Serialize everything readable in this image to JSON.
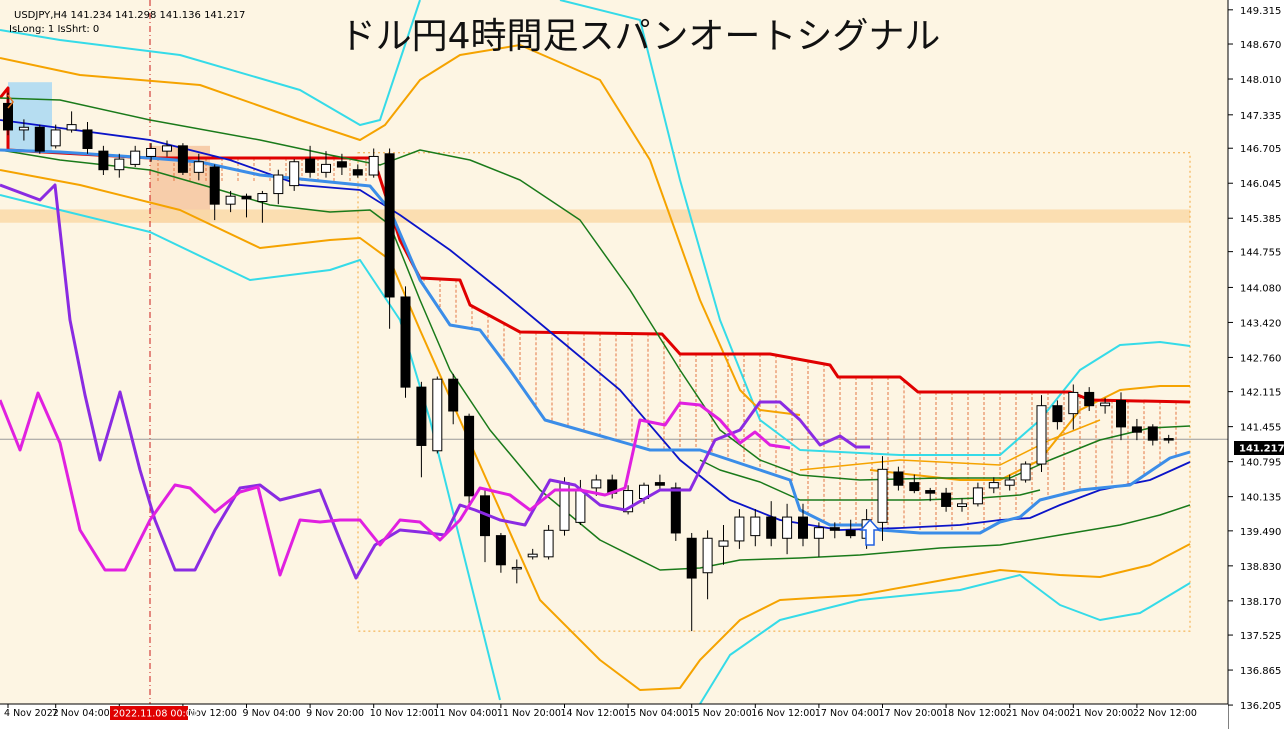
{
  "header": {
    "symbol_line": "USDJPY,H4  141.234 141.298 141.136 141.217",
    "indicator_line": "IsLong: 1 IsShrt: 0",
    "title": "ドル円4時間足スパンオートシグナル"
  },
  "price_label": "141.217",
  "crosshair_label": "2022.11.08 00:00",
  "colors": {
    "background": "#fdf5e3",
    "bull_body": "#ffffff",
    "bear_body": "#000000",
    "red_line": "#e00000",
    "green_line": "#1a7a1a",
    "blue_line": "#0b14c8",
    "light_blue_line": "#3b8de8",
    "orange_band": "#f5a300",
    "cyan_band": "#35dbe8",
    "purple_osc": "#8a2be2",
    "magenta_osc": "#e020e0",
    "price_tag": "#000000",
    "crosshair_tag": "#e00000"
  },
  "chart_data": {
    "type": "candlestick",
    "symbol": "USDJPY",
    "timeframe": "H4",
    "ylim": [
      136.225,
      149.5
    ],
    "yticks": [
      "149.315",
      "148.670",
      "148.010",
      "147.335",
      "146.705",
      "146.045",
      "145.385",
      "144.755",
      "144.080",
      "143.420",
      "142.760",
      "142.115",
      "141.455",
      "140.795",
      "140.135",
      "139.490",
      "138.830",
      "138.170",
      "137.525",
      "136.865",
      "136.205"
    ],
    "xticks": [
      {
        "i": 0,
        "label": "4 Nov 2022"
      },
      {
        "i": 3,
        "label": "7 Nov 04:00"
      },
      {
        "i": 7,
        "label": "8 Nov 00:00"
      },
      {
        "i": 11,
        "label": "8 Nov 12:00"
      },
      {
        "i": 15,
        "label": "9 Nov 04:00"
      },
      {
        "i": 19,
        "label": "9 Nov 20:00"
      },
      {
        "i": 23,
        "label": "10 Nov 12:00"
      },
      {
        "i": 27,
        "label": "11 Nov 04:00"
      },
      {
        "i": 31,
        "label": "11 Nov 20:00"
      },
      {
        "i": 35,
        "label": "14 Nov 12:00"
      },
      {
        "i": 39,
        "label": "15 Nov 04:00"
      },
      {
        "i": 43,
        "label": "15 Nov 20:00"
      },
      {
        "i": 47,
        "label": "16 Nov 12:00"
      },
      {
        "i": 51,
        "label": "17 Nov 04:00"
      },
      {
        "i": 55,
        "label": "17 Nov 20:00"
      },
      {
        "i": 59,
        "label": "18 Nov 12:00"
      },
      {
        "i": 63,
        "label": "21 Nov 04:00"
      },
      {
        "i": 67,
        "label": "21 Nov 20:00"
      },
      {
        "i": 71,
        "label": "22 Nov 12:00"
      }
    ],
    "candles": [
      [
        147.55,
        147.75,
        146.95,
        147.05
      ],
      [
        147.05,
        147.25,
        146.85,
        147.1
      ],
      [
        147.1,
        147.15,
        146.6,
        146.65
      ],
      [
        146.75,
        147.15,
        146.7,
        147.05
      ],
      [
        147.05,
        147.4,
        147.0,
        147.15
      ],
      [
        147.05,
        147.2,
        146.6,
        146.7
      ],
      [
        146.65,
        146.75,
        146.2,
        146.3
      ],
      [
        146.3,
        146.6,
        146.15,
        146.5
      ],
      [
        146.4,
        146.75,
        146.35,
        146.65
      ],
      [
        146.55,
        146.8,
        146.45,
        146.7
      ],
      [
        146.65,
        146.85,
        146.55,
        146.75
      ],
      [
        146.75,
        146.8,
        146.2,
        146.25
      ],
      [
        146.25,
        146.6,
        146.1,
        146.45
      ],
      [
        146.35,
        146.4,
        145.35,
        145.65
      ],
      [
        145.65,
        145.9,
        145.5,
        145.8
      ],
      [
        145.8,
        145.85,
        145.4,
        145.75
      ],
      [
        145.7,
        145.9,
        145.3,
        145.85
      ],
      [
        145.85,
        146.3,
        145.65,
        146.2
      ],
      [
        146.0,
        146.5,
        145.9,
        146.45
      ],
      [
        146.5,
        146.75,
        146.15,
        146.25
      ],
      [
        146.25,
        146.65,
        146.15,
        146.4
      ],
      [
        146.45,
        146.6,
        146.2,
        146.35
      ],
      [
        146.3,
        146.4,
        146.15,
        146.2
      ],
      [
        146.2,
        146.7,
        146.15,
        146.55
      ],
      [
        146.6,
        146.7,
        143.3,
        143.9
      ],
      [
        143.9,
        144.1,
        142.0,
        142.2
      ],
      [
        142.2,
        142.3,
        140.5,
        141.1
      ],
      [
        141.0,
        142.4,
        140.95,
        142.35
      ],
      [
        142.35,
        142.45,
        141.5,
        141.75
      ],
      [
        141.65,
        141.7,
        139.9,
        140.15
      ],
      [
        140.15,
        140.25,
        138.9,
        139.4
      ],
      [
        139.4,
        139.45,
        138.7,
        138.85
      ],
      [
        138.8,
        138.95,
        138.5,
        138.8
      ],
      [
        139.0,
        139.15,
        138.95,
        139.05
      ],
      [
        139.0,
        139.6,
        138.95,
        139.5
      ],
      [
        139.5,
        140.5,
        139.4,
        140.4
      ],
      [
        139.65,
        140.45,
        139.6,
        140.25
      ],
      [
        140.3,
        140.55,
        140.15,
        140.45
      ],
      [
        140.45,
        140.55,
        140.1,
        140.2
      ],
      [
        139.85,
        140.35,
        139.8,
        140.25
      ],
      [
        140.1,
        140.4,
        140.0,
        140.35
      ],
      [
        140.4,
        140.55,
        140.25,
        140.35
      ],
      [
        140.3,
        140.4,
        139.3,
        139.45
      ],
      [
        139.35,
        139.45,
        137.6,
        138.6
      ],
      [
        138.7,
        139.5,
        138.2,
        139.35
      ],
      [
        139.2,
        139.6,
        138.85,
        139.3
      ],
      [
        139.3,
        139.9,
        139.15,
        139.75
      ],
      [
        139.4,
        139.9,
        139.2,
        139.75
      ],
      [
        139.75,
        140.05,
        139.2,
        139.35
      ],
      [
        139.35,
        140.0,
        139.05,
        139.75
      ],
      [
        139.75,
        140.0,
        139.2,
        139.35
      ],
      [
        139.35,
        139.65,
        139.0,
        139.55
      ],
      [
        139.55,
        139.65,
        139.35,
        139.5
      ],
      [
        139.5,
        139.7,
        139.35,
        139.4
      ],
      [
        139.35,
        139.9,
        139.15,
        139.7
      ],
      [
        139.65,
        140.9,
        139.3,
        140.65
      ],
      [
        140.6,
        140.7,
        140.25,
        140.35
      ],
      [
        140.4,
        140.55,
        140.2,
        140.25
      ],
      [
        140.25,
        140.3,
        140.05,
        140.2
      ],
      [
        140.2,
        140.3,
        139.85,
        139.95
      ],
      [
        139.95,
        140.1,
        139.85,
        140.0
      ],
      [
        140.0,
        140.4,
        139.95,
        140.3
      ],
      [
        140.3,
        140.5,
        140.2,
        140.4
      ],
      [
        140.35,
        140.55,
        140.25,
        140.45
      ],
      [
        140.45,
        140.8,
        140.4,
        140.75
      ],
      [
        140.75,
        142.05,
        140.6,
        141.85
      ],
      [
        141.85,
        141.95,
        141.4,
        141.55
      ],
      [
        141.7,
        142.25,
        141.4,
        142.1
      ],
      [
        142.1,
        142.2,
        141.75,
        141.85
      ],
      [
        141.85,
        142.0,
        141.7,
        141.9
      ],
      [
        141.95,
        142.1,
        141.2,
        141.45
      ],
      [
        141.45,
        141.6,
        141.2,
        141.35
      ],
      [
        141.45,
        141.5,
        141.1,
        141.2
      ],
      [
        141.23,
        141.3,
        141.14,
        141.22
      ]
    ]
  }
}
